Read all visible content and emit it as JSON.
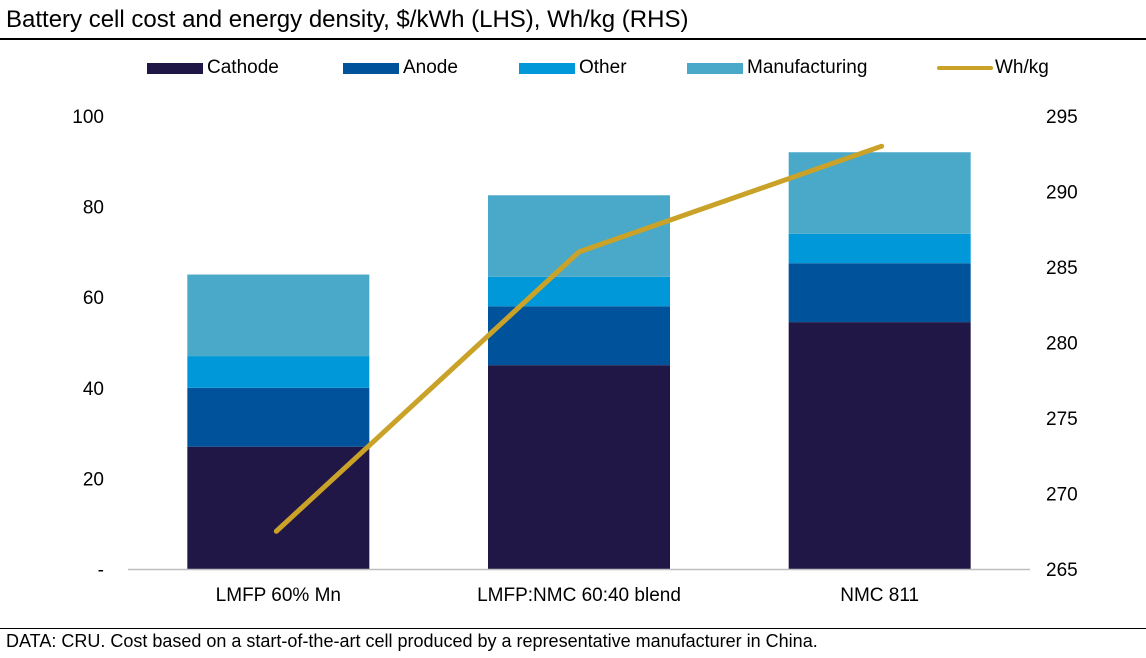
{
  "title": "Battery cell cost and energy density, $/kWh (LHS), Wh/kg (RHS)",
  "footer": "DATA: CRU. Cost based on a start-of-the-art cell produced by a representative manufacturer in China.",
  "chart_data": {
    "type": "bar",
    "stacked": true,
    "categories": [
      "LMFP 60% Mn",
      "LMFP:NMC 60:40 blend",
      "NMC 811"
    ],
    "series": [
      {
        "name": "Cathode",
        "color": "#201747",
        "values": [
          27,
          45,
          54.5
        ]
      },
      {
        "name": "Anode",
        "color": "#00539b",
        "values": [
          13,
          13,
          13
        ]
      },
      {
        "name": "Other",
        "color": "#0098d8",
        "values": [
          7,
          6.5,
          6.5
        ]
      },
      {
        "name": "Manufacturing",
        "color": "#4aa9c8",
        "values": [
          18,
          18,
          18
        ]
      }
    ],
    "line_series": {
      "name": "Wh/kg",
      "color": "#c9a227",
      "axis": "right",
      "values": [
        267.5,
        286,
        293
      ]
    },
    "left_axis": {
      "ylim": [
        0,
        100
      ],
      "ticks": [
        "-",
        "20",
        "40",
        "60",
        "80",
        "100"
      ]
    },
    "right_axis": {
      "ylim": [
        265,
        295
      ],
      "ticks": [
        "265",
        "270",
        "275",
        "280",
        "285",
        "290",
        "295"
      ]
    },
    "legend_position": "top",
    "grid": false
  }
}
